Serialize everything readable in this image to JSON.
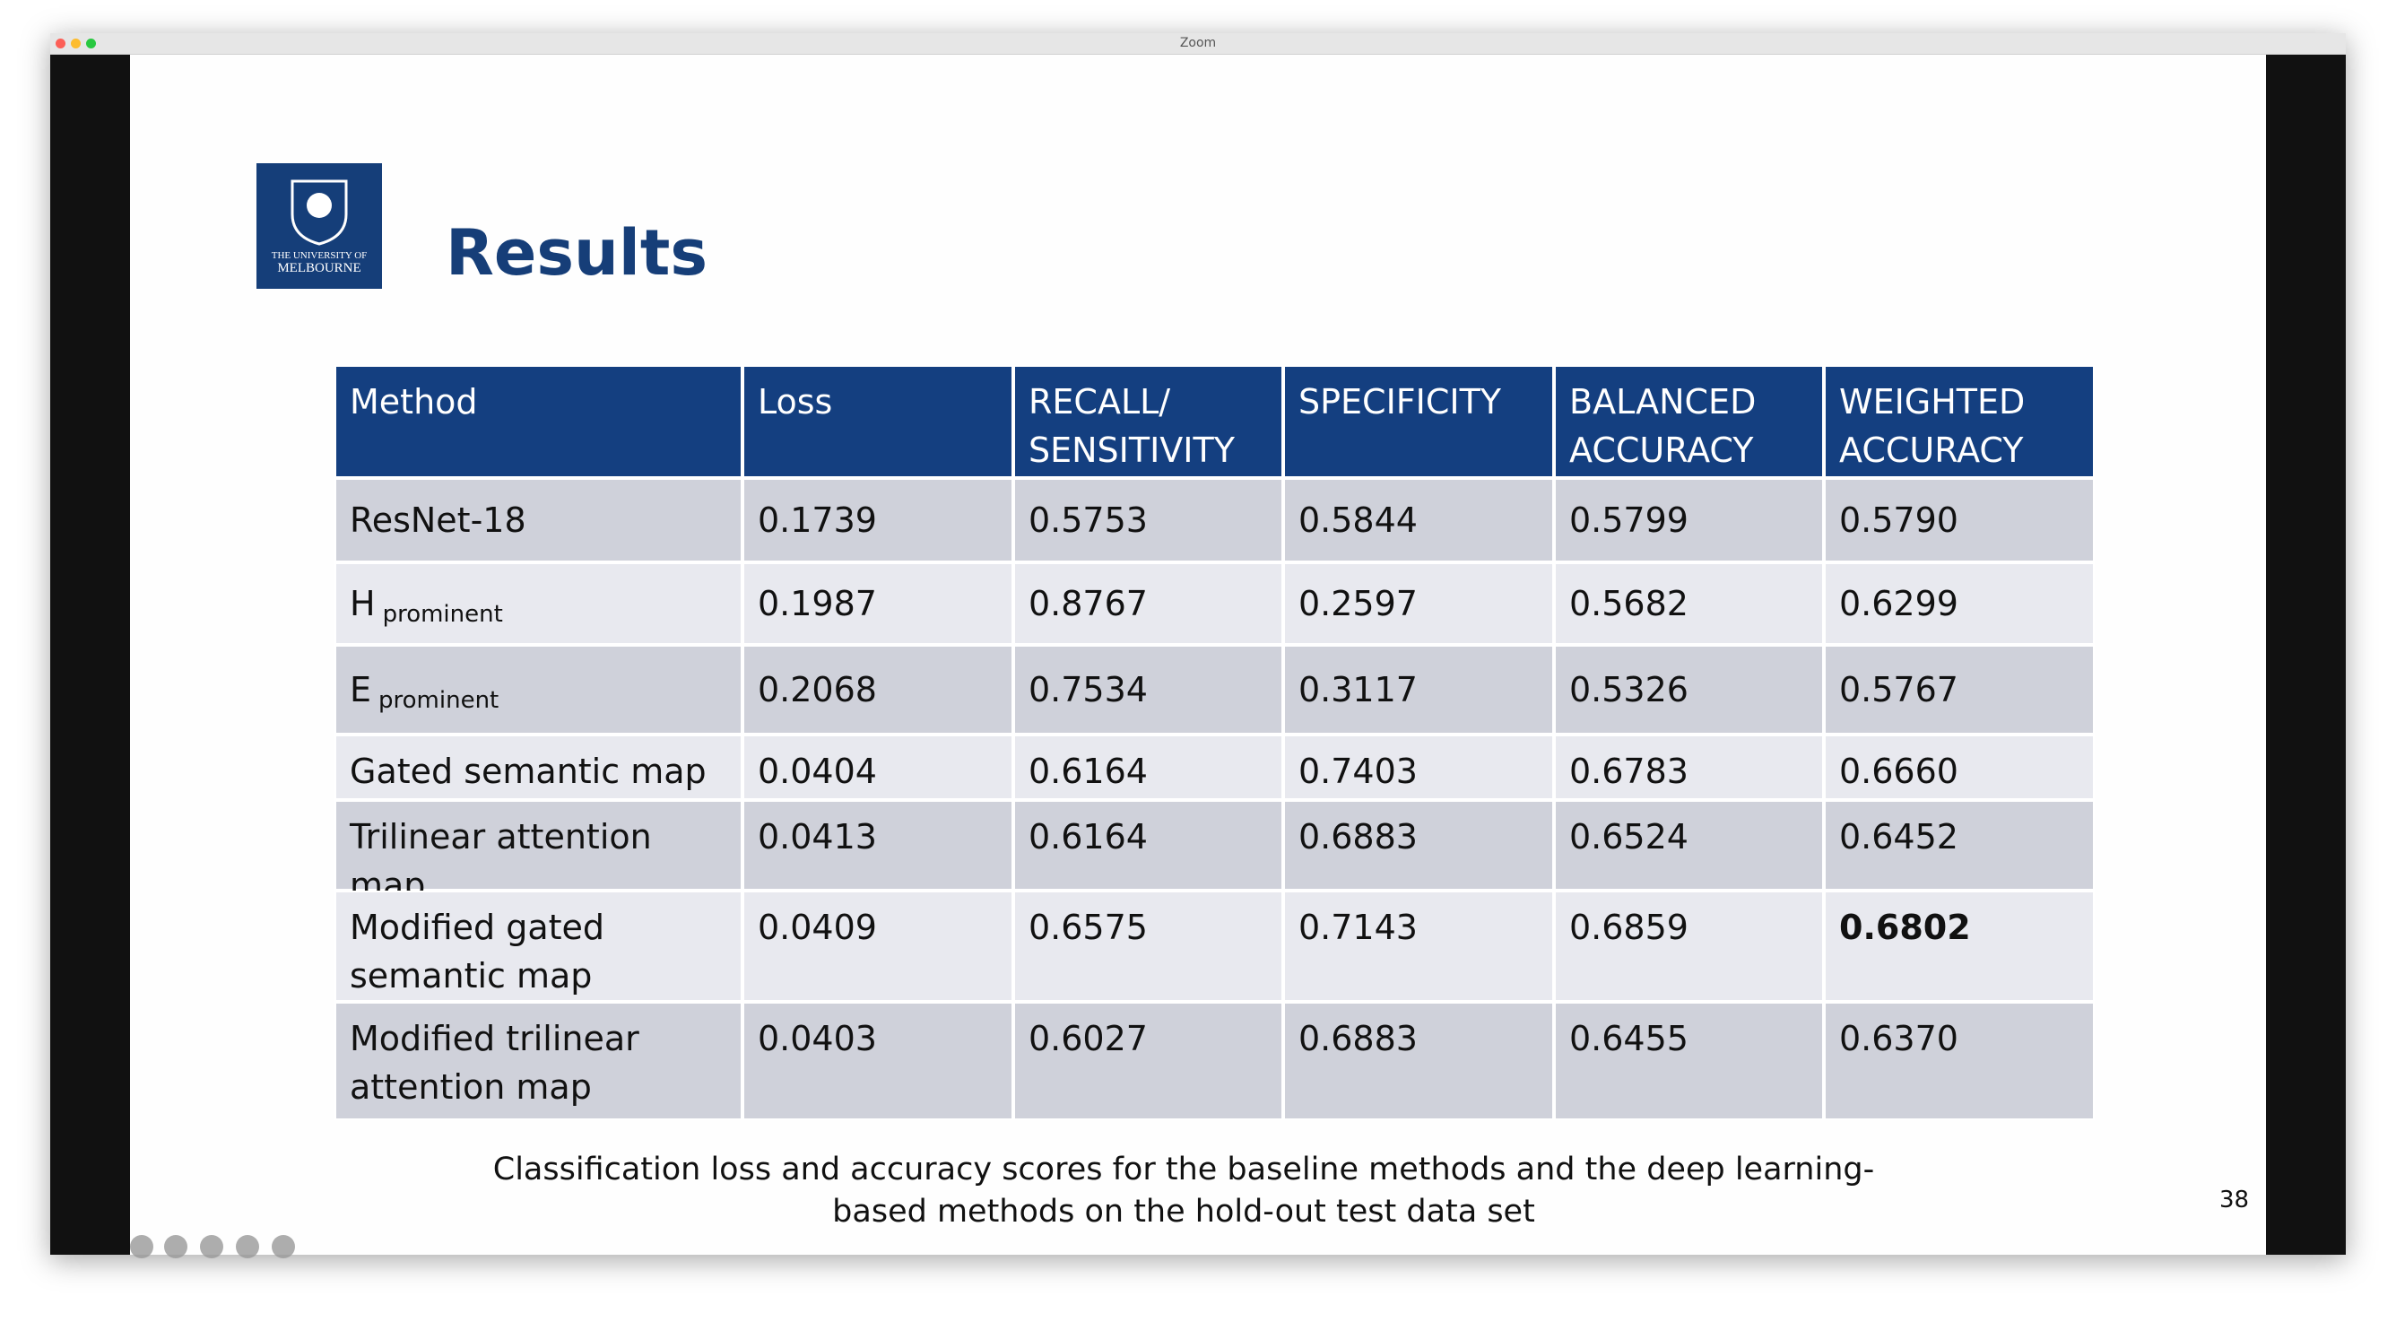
{
  "window": {
    "title": "Zoom"
  },
  "logo": {
    "line1": "THE UNIVERSITY OF",
    "line2": "MELBOURNE"
  },
  "header": {
    "title": "Results"
  },
  "table": {
    "columns": [
      "Method",
      "Loss",
      "RECALL/ SENSITIVITY",
      "SPECIFICITY",
      "BALANCED ACCURACY",
      "WEIGHTED ACCURACY"
    ],
    "rows": [
      [
        "ResNet-18",
        "0.1739",
        "0.5753",
        "0.5844",
        "0.5799",
        "0.5790"
      ],
      [
        {
          "main": "H",
          "sub": "prominent"
        },
        "0.1987",
        "0.8767",
        "0.2597",
        "0.5682",
        "0.6299"
      ],
      [
        {
          "main": "E",
          "sub": "prominent"
        },
        "0.2068",
        "0.7534",
        "0.3117",
        "0.5326",
        "0.5767"
      ],
      [
        "Gated semantic map",
        "0.0404",
        "0.6164",
        "0.7403",
        "0.6783",
        "0.6660"
      ],
      [
        "Trilinear attention map",
        "0.0413",
        "0.6164",
        "0.6883",
        "0.6524",
        "0.6452"
      ],
      [
        "Modified gated semantic map",
        "0.0409",
        "0.6575",
        "0.7143",
        "0.6859",
        "0.6802"
      ],
      [
        "Modified trilinear attention map",
        "0.0403",
        "0.6027",
        "0.6883",
        "0.6455",
        "0.6370"
      ]
    ],
    "bold_cell": [
      5,
      5
    ]
  },
  "caption": "Classification loss and accuracy scores for the baseline methods and the deep learning-based methods on the hold-out test data set",
  "page_number": "38"
}
